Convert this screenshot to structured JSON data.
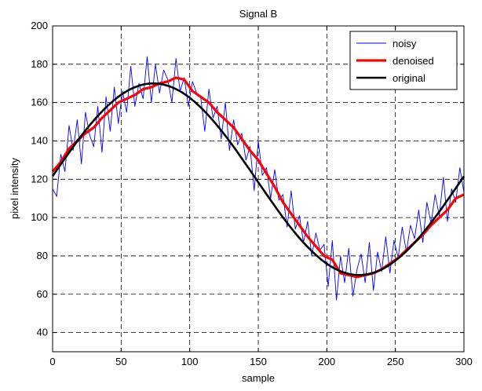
{
  "chart_data": {
    "type": "line",
    "title": "Signal B",
    "xlabel": "sample",
    "ylabel": "pixel intensity",
    "xlim": [
      0,
      300
    ],
    "ylim": [
      30,
      200
    ],
    "xticks": [
      0,
      50,
      100,
      150,
      200,
      250,
      300
    ],
    "yticks": [
      40,
      60,
      80,
      100,
      120,
      140,
      160,
      180,
      200
    ],
    "grid": true,
    "legend_position": "top-right",
    "series": [
      {
        "name": "noisy",
        "color": "#0000ff",
        "x": [
          0,
          3,
          6,
          9,
          12,
          15,
          18,
          21,
          24,
          27,
          30,
          33,
          36,
          39,
          42,
          45,
          48,
          51,
          54,
          57,
          60,
          63,
          66,
          69,
          72,
          75,
          78,
          81,
          84,
          87,
          90,
          93,
          96,
          99,
          102,
          105,
          108,
          111,
          114,
          117,
          120,
          123,
          126,
          129,
          132,
          135,
          138,
          141,
          144,
          147,
          150,
          153,
          156,
          159,
          162,
          165,
          168,
          171,
          174,
          177,
          180,
          183,
          186,
          189,
          192,
          195,
          198,
          201,
          204,
          207,
          210,
          213,
          216,
          219,
          222,
          225,
          228,
          231,
          234,
          237,
          240,
          243,
          246,
          249,
          252,
          255,
          258,
          261,
          264,
          267,
          270,
          273,
          276,
          279,
          282,
          285,
          288,
          291,
          294,
          297,
          300
        ],
        "values": [
          115,
          111,
          133,
          124,
          148,
          135,
          151,
          128,
          155,
          143,
          137,
          158,
          134,
          163,
          145,
          168,
          149,
          166,
          155,
          179,
          158,
          170,
          162,
          184,
          160,
          180,
          165,
          177,
          172,
          160,
          183,
          166,
          173,
          158,
          171,
          165,
          163,
          145,
          167,
          152,
          158,
          141,
          160,
          135,
          151,
          138,
          144,
          130,
          137,
          114,
          140,
          122,
          126,
          110,
          125,
          109,
          112,
          95,
          114,
          94,
          101,
          87,
          98,
          80,
          92,
          83,
          86,
          64,
          88,
          57,
          80,
          66,
          84,
          59,
          73,
          81,
          66,
          87,
          62,
          82,
          72,
          90,
          71,
          88,
          79,
          95,
          82,
          96,
          89,
          104,
          87,
          108,
          97,
          112,
          101,
          121,
          98,
          115,
          108,
          126,
          113
        ]
      },
      {
        "name": "denoised",
        "color": "#ff0000",
        "x": [
          0,
          6,
          12,
          18,
          24,
          30,
          36,
          42,
          48,
          54,
          60,
          66,
          72,
          78,
          84,
          90,
          96,
          102,
          108,
          114,
          120,
          126,
          132,
          138,
          144,
          150,
          156,
          162,
          168,
          174,
          180,
          186,
          192,
          198,
          204,
          210,
          216,
          222,
          228,
          234,
          240,
          246,
          252,
          258,
          264,
          270,
          276,
          282,
          288,
          294,
          300
        ],
        "values": [
          124,
          129,
          136,
          140,
          144,
          147,
          152,
          156,
          160,
          162,
          164,
          167,
          168,
          170,
          171,
          173,
          172,
          166,
          163,
          160,
          155,
          151,
          147,
          141,
          135,
          130,
          123,
          116,
          108,
          102,
          96,
          90,
          85,
          80,
          78,
          71,
          70,
          69,
          70,
          71,
          73,
          76,
          79,
          83,
          87,
          91,
          96,
          100,
          104,
          110,
          112
        ]
      },
      {
        "name": "original",
        "color": "#000000",
        "formula": "120 + 50*sin(2*pi*(x+1.5)/300)"
      }
    ]
  }
}
